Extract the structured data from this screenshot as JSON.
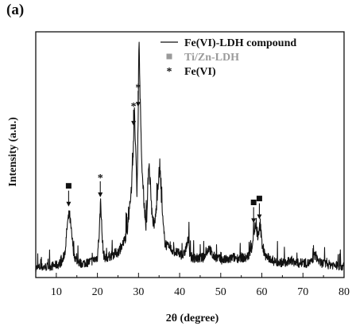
{
  "panel_label": "(a)",
  "chart_data": {
    "type": "line",
    "xlabel": "2θ (degree)",
    "ylabel": "Intensity (a.u.)",
    "xlim": [
      5,
      80
    ],
    "xticks": [
      10,
      20,
      30,
      40,
      50,
      60,
      70,
      80
    ],
    "yticks_shown": false,
    "grid": false,
    "legend_position": "top-right",
    "legend": [
      {
        "marker": "line",
        "label": "Fe(VI)-LDH compound",
        "color": "#111111"
      },
      {
        "marker": "square",
        "label": "Ti/Zn-LDH",
        "color": "#9a9a9a"
      },
      {
        "marker": "star",
        "label": "Fe(VI)",
        "color": "#111111"
      }
    ],
    "series": [
      {
        "label": "Fe(VI)-LDH compound",
        "x": [
          5,
          7,
          9,
          10.5,
          11.5,
          12.2,
          12.7,
          13.2,
          13.7,
          14.3,
          15,
          16,
          17,
          18,
          19,
          20,
          20.5,
          20.8,
          21.1,
          21.5,
          22,
          23,
          24,
          25,
          25.8,
          26.5,
          27.2,
          27.8,
          28.3,
          28.7,
          29.0,
          29.3,
          29.6,
          29.9,
          30.1,
          30.4,
          30.7,
          31.0,
          31.4,
          31.8,
          32.1,
          32.5,
          32.9,
          33.3,
          33.8,
          34.3,
          34.8,
          35.2,
          35.6,
          36.0,
          36.4,
          37,
          38,
          39,
          40,
          41,
          42.2,
          42.5,
          42.8,
          44,
          45,
          46,
          47.2,
          48,
          49,
          50,
          51,
          52,
          53,
          54,
          55,
          56,
          57,
          57.6,
          58.0,
          58.4,
          58.8,
          59.2,
          59.6,
          60.0,
          60.5,
          61,
          62,
          63,
          64,
          65,
          66,
          67,
          68,
          69,
          70,
          71,
          72,
          73,
          74,
          75,
          76,
          77,
          78,
          79,
          80
        ],
        "y": [
          0.9,
          1.1,
          1.3,
          1.6,
          2.2,
          4.5,
          9.5,
          11.5,
          7.5,
          3.5,
          2.2,
          1.8,
          1.9,
          2.1,
          2.4,
          3.0,
          8.5,
          14.5,
          7.5,
          3.5,
          2.8,
          3.2,
          3.6,
          4.0,
          5.0,
          6.0,
          8.0,
          12.0,
          17.0,
          24.0,
          31.0,
          24.0,
          15.0,
          30.0,
          44.0,
          35.0,
          22.0,
          18.0,
          13.0,
          9.0,
          12.0,
          22.0,
          17.0,
          11.0,
          9.0,
          12.0,
          18.0,
          20.0,
          14.0,
          9.0,
          6.0,
          5.0,
          4.5,
          4.0,
          3.6,
          3.4,
          6.5,
          3.5,
          3.0,
          2.8,
          2.8,
          3.0,
          5.0,
          3.2,
          3.0,
          2.5,
          2.5,
          2.5,
          3.0,
          2.8,
          3.0,
          2.8,
          3.5,
          5.0,
          7.5,
          9.0,
          7.5,
          7.0,
          9.5,
          6.0,
          4.0,
          3.0,
          2.8,
          2.2,
          2.0,
          2.0,
          1.8,
          2.5,
          2.0,
          1.8,
          2.0,
          1.8,
          2.0,
          3.5,
          2.0,
          1.8,
          1.6,
          1.6,
          1.4,
          1.3,
          1.2
        ]
      }
    ],
    "annotations": [
      {
        "marker": "square",
        "x": 13.0
      },
      {
        "marker": "star",
        "x": 20.7
      },
      {
        "marker": "star",
        "x": 28.8
      },
      {
        "marker": "star",
        "x": 29.9
      },
      {
        "marker": "square",
        "x": 58.0
      },
      {
        "marker": "square",
        "x": 59.4
      }
    ]
  }
}
